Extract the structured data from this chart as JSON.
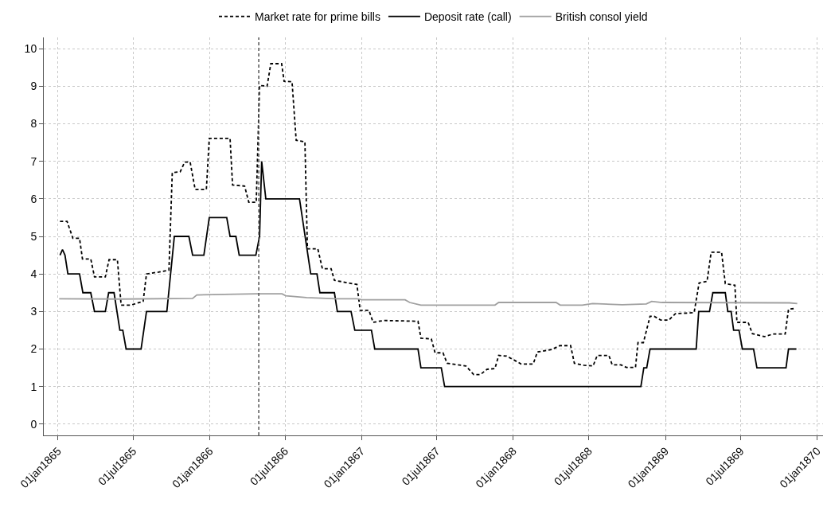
{
  "chart_data": {
    "type": "line",
    "series": [
      {
        "name": "Market rate for prime bills",
        "color": "#000000",
        "line_style": "dashed",
        "x": [
          "1865-01-06",
          "1865-01-23",
          "1865-02-06",
          "1865-02-22",
          "1865-03-01",
          "1865-03-21",
          "1865-03-30",
          "1865-04-25",
          "1865-05-04",
          "1865-05-24",
          "1865-06-02",
          "1865-06-25",
          "1865-07-25",
          "1865-08-02",
          "1865-08-31",
          "1865-09-25",
          "1865-10-03",
          "1865-10-22",
          "1865-11-02",
          "1865-11-15",
          "1865-11-27",
          "1865-12-24",
          "1865-12-31",
          "1866-02-19",
          "1866-02-25",
          "1866-03-26",
          "1866-04-05",
          "1866-04-23",
          "1866-05-01",
          "1866-05-19",
          "1866-05-28",
          "1866-06-23",
          "1866-06-29",
          "1866-07-18",
          "1866-07-28",
          "1866-08-18",
          "1866-08-24",
          "1866-09-18",
          "1866-09-29",
          "1866-10-20",
          "1866-10-28",
          "1866-12-21",
          "1866-12-29",
          "1867-01-19",
          "1867-01-29",
          "1867-02-23",
          "1867-05-17",
          "1867-05-24",
          "1867-06-18",
          "1867-06-27",
          "1867-07-16",
          "1867-07-26",
          "1867-09-09",
          "1867-09-28",
          "1867-10-14",
          "1867-10-30",
          "1867-11-18",
          "1867-11-27",
          "1867-12-16",
          "1868-01-01",
          "1868-01-20",
          "1868-02-18",
          "1868-02-28",
          "1868-04-03",
          "1868-04-22",
          "1868-05-18",
          "1868-05-27",
          "1868-06-19",
          "1868-07-11",
          "1868-07-21",
          "1868-08-18",
          "1868-08-26",
          "1868-09-16",
          "1868-09-29",
          "1868-10-21",
          "1868-10-27",
          "1868-11-09",
          "1868-11-25",
          "1868-12-05",
          "1868-12-21",
          "1869-01-09",
          "1869-01-25",
          "1869-03-11",
          "1869-03-23",
          "1869-04-11",
          "1869-04-21",
          "1869-05-16",
          "1869-05-25",
          "1869-06-17",
          "1869-06-22",
          "1869-07-19",
          "1869-07-29",
          "1869-08-27",
          "1869-09-17",
          "1869-10-16",
          "1869-10-24",
          "1869-11-08"
        ],
        "values": [
          5.4,
          5.4,
          4.95,
          4.95,
          4.4,
          4.4,
          3.92,
          3.92,
          4.38,
          4.38,
          3.17,
          3.17,
          3.27,
          4.0,
          4.05,
          4.1,
          6.7,
          6.72,
          6.98,
          6.98,
          6.25,
          6.25,
          7.61,
          7.61,
          6.37,
          6.34,
          5.91,
          5.91,
          9.02,
          9.0,
          9.6,
          9.6,
          9.13,
          9.12,
          7.56,
          7.52,
          4.67,
          4.67,
          4.14,
          4.14,
          3.83,
          3.72,
          3.03,
          3.03,
          2.71,
          2.76,
          2.74,
          2.29,
          2.27,
          1.9,
          1.9,
          1.62,
          1.55,
          1.32,
          1.32,
          1.46,
          1.48,
          1.83,
          1.81,
          1.72,
          1.6,
          1.6,
          1.92,
          1.99,
          2.09,
          2.09,
          1.62,
          1.57,
          1.55,
          1.83,
          1.83,
          1.58,
          1.58,
          1.51,
          1.51,
          2.17,
          2.17,
          2.87,
          2.87,
          2.77,
          2.77,
          2.94,
          2.97,
          3.76,
          3.8,
          4.58,
          4.58,
          3.74,
          3.7,
          2.71,
          2.71,
          2.41,
          2.33,
          2.4,
          2.4,
          3.06,
          3.08
        ]
      },
      {
        "name": "Deposit rate (call)",
        "color": "#000000",
        "line_style": "solid",
        "x": [
          "1865-01-06",
          "1865-01-12",
          "1865-01-18",
          "1865-01-25",
          "1865-02-22",
          "1865-03-02",
          "1865-03-21",
          "1865-03-30",
          "1865-04-25",
          "1865-05-03",
          "1865-05-16",
          "1865-05-30",
          "1865-06-06",
          "1865-06-14",
          "1865-07-20",
          "1865-08-02",
          "1865-09-20",
          "1865-10-08",
          "1865-11-12",
          "1865-11-21",
          "1865-12-18",
          "1865-12-31",
          "1866-02-11",
          "1866-02-19",
          "1866-03-05",
          "1866-03-13",
          "1866-04-22",
          "1866-05-01",
          "1866-05-06",
          "1866-05-16",
          "1866-08-05",
          "1866-09-01",
          "1866-09-16",
          "1866-09-23",
          "1866-10-28",
          "1866-11-04",
          "1866-12-07",
          "1866-12-16",
          "1867-01-25",
          "1867-02-02",
          "1867-05-17",
          "1867-05-24",
          "1867-07-12",
          "1867-07-20",
          "1868-11-03",
          "1868-11-10",
          "1868-11-17",
          "1868-11-25",
          "1869-03-16",
          "1869-03-22",
          "1869-04-17",
          "1869-04-25",
          "1869-05-25",
          "1869-05-31",
          "1869-06-08",
          "1869-06-14",
          "1869-06-27",
          "1869-07-05",
          "1869-08-01",
          "1869-08-09",
          "1869-10-18",
          "1869-10-24",
          "1869-11-12"
        ],
        "values": [
          4.5,
          4.65,
          4.5,
          4.0,
          4.0,
          3.5,
          3.5,
          3.0,
          3.0,
          3.5,
          3.5,
          2.5,
          2.5,
          2.0,
          2.0,
          3.0,
          3.0,
          5.0,
          5.0,
          4.5,
          4.5,
          5.5,
          5.5,
          5.0,
          5.0,
          4.5,
          4.5,
          5.0,
          7.0,
          6.0,
          6.0,
          4.0,
          4.0,
          3.5,
          3.5,
          3.0,
          3.0,
          2.5,
          2.5,
          2.0,
          2.0,
          1.5,
          1.5,
          1.0,
          1.0,
          1.5,
          1.5,
          2.0,
          2.0,
          3.0,
          3.0,
          3.5,
          3.5,
          3.0,
          3.0,
          2.5,
          2.5,
          2.0,
          2.0,
          1.5,
          1.5,
          2.0,
          2.0
        ]
      },
      {
        "name": "British consol yield",
        "color": "#a0a0a0",
        "line_style": "solid",
        "x": [
          "1865-01-04",
          "1865-06-02",
          "1865-11-21",
          "1865-12-01",
          "1866-04-23",
          "1866-06-24",
          "1866-07-03",
          "1866-08-22",
          "1866-11-01",
          "1866-12-22",
          "1867-01-02",
          "1867-04-16",
          "1867-04-27",
          "1867-05-24",
          "1867-11-18",
          "1867-11-27",
          "1868-04-13",
          "1868-04-23",
          "1868-06-15",
          "1868-07-10",
          "1868-09-19",
          "1868-11-16",
          "1868-11-29",
          "1868-12-24",
          "1869-10-26",
          "1869-11-14"
        ],
        "values": [
          3.34,
          3.33,
          3.35,
          3.44,
          3.47,
          3.47,
          3.42,
          3.37,
          3.34,
          3.34,
          3.31,
          3.31,
          3.24,
          3.17,
          3.17,
          3.24,
          3.24,
          3.17,
          3.17,
          3.21,
          3.18,
          3.2,
          3.27,
          3.24,
          3.23,
          3.21
        ]
      }
    ],
    "xlim": [
      "1864-11-28",
      "1870-01-15"
    ],
    "xticks": [
      {
        "value": "1865-01-01",
        "label": "01jan1865"
      },
      {
        "value": "1865-07-01",
        "label": "01jul1865"
      },
      {
        "value": "1866-01-01",
        "label": "01jan1866"
      },
      {
        "value": "1866-07-01",
        "label": "01jul1866"
      },
      {
        "value": "1867-01-01",
        "label": "01jan1867"
      },
      {
        "value": "1867-07-01",
        "label": "01jul1867"
      },
      {
        "value": "1868-01-01",
        "label": "01jan1868"
      },
      {
        "value": "1868-07-01",
        "label": "01jul1868"
      },
      {
        "value": "1869-01-01",
        "label": "01jan1869"
      },
      {
        "value": "1869-07-01",
        "label": "01jul1869"
      },
      {
        "value": "1870-01-01",
        "label": "01jan1870"
      }
    ],
    "ylim": [
      -0.3,
      10.3
    ],
    "yticks": [
      0,
      1,
      2,
      3,
      4,
      5,
      6,
      7,
      8,
      9,
      10
    ],
    "ref_lines": [
      {
        "axis": "x",
        "value": "1866-04-29",
        "color": "#555555",
        "line_style": "dashed"
      }
    ],
    "grid": true,
    "legend": "top",
    "marker": "none"
  }
}
